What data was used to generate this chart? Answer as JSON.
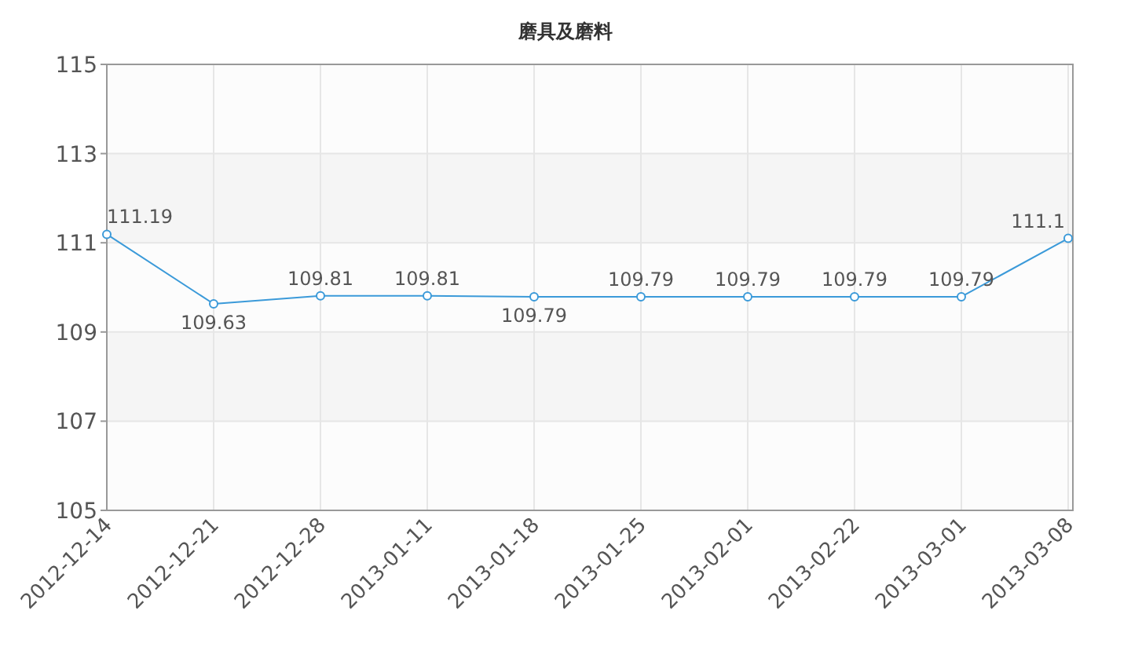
{
  "chart_data": {
    "type": "line",
    "title": "磨具及磨料",
    "categories": [
      "2012-12-14",
      "2012-12-21",
      "2012-12-28",
      "2013-01-11",
      "2013-01-18",
      "2013-01-25",
      "2013-02-01",
      "2013-02-22",
      "2013-03-01",
      "2013-03-08"
    ],
    "series": [
      {
        "color": "#3b9ad9",
        "values": [
          111.19,
          109.63,
          109.81,
          109.81,
          109.79,
          109.79,
          109.79,
          109.79,
          109.79,
          111.1
        ]
      }
    ],
    "ylim": [
      105,
      115
    ],
    "yticks": [
      105,
      107,
      109,
      111,
      113,
      115
    ],
    "grid": true,
    "data_labels": true,
    "marker": "circle",
    "line_style": "solid"
  }
}
